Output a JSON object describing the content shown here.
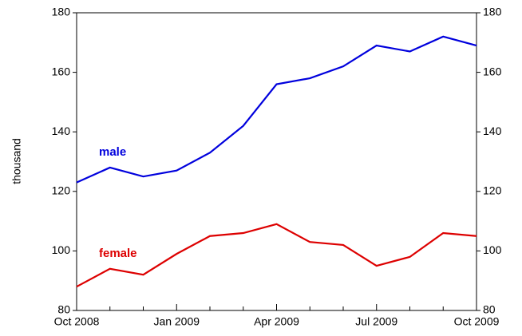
{
  "chart_data": {
    "type": "line",
    "y_label": "thousand",
    "categories": [
      "Oct 2008",
      null,
      null,
      "Jan 2009",
      null,
      null,
      "Apr 2009",
      null,
      null,
      "Jul 2009",
      null,
      null,
      "Oct 2009"
    ],
    "series": [
      {
        "name": "male",
        "color": "#0000dd",
        "values": [
          123,
          128,
          125,
          127,
          133,
          142,
          156,
          158,
          162,
          169,
          167,
          172,
          169
        ]
      },
      {
        "name": "female",
        "color": "#dd0000",
        "values": [
          88,
          94,
          92,
          99,
          105,
          106,
          109,
          103,
          102,
          95,
          98,
          106,
          105
        ]
      }
    ],
    "ylim": [
      80,
      180
    ],
    "yticks": [
      80,
      100,
      120,
      140,
      160,
      180
    ],
    "y2lim": [
      80,
      180
    ],
    "y2ticks": [
      80,
      100,
      120,
      140,
      160,
      180
    ]
  }
}
